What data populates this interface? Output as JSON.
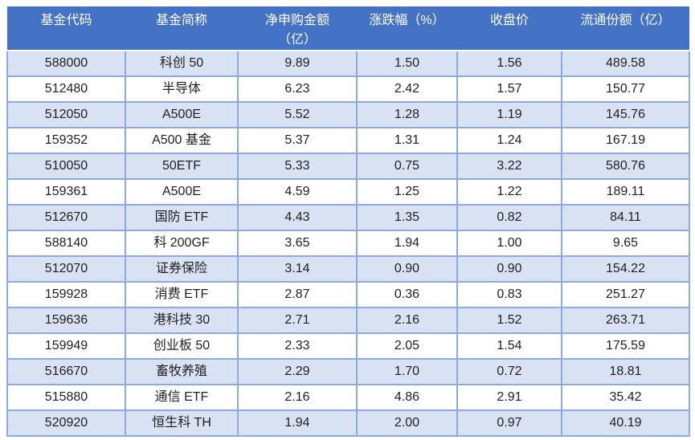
{
  "colors": {
    "header_bg": "#4472C4",
    "header_text": "#ffffff",
    "band_row_bg": "#D9E2F3",
    "plain_row_bg": "#ffffff",
    "border": "#8EAADB",
    "body_text": "#1f1f1f"
  },
  "table": {
    "columns": [
      {
        "key": "code",
        "label": "基金代码"
      },
      {
        "key": "name",
        "label": "基金简称"
      },
      {
        "key": "net",
        "label": "净申购金额\n（亿）"
      },
      {
        "key": "chg",
        "label": "涨跌幅（%）"
      },
      {
        "key": "close",
        "label": "收盘价"
      },
      {
        "key": "shares",
        "label": "流通份额（亿）"
      }
    ],
    "rows": [
      {
        "code": "588000",
        "name": "科创 50",
        "net": "9.89",
        "chg": "1.50",
        "close": "1.56",
        "shares": "489.58"
      },
      {
        "code": "512480",
        "name": "半导体",
        "net": "6.23",
        "chg": "2.42",
        "close": "1.57",
        "shares": "150.77"
      },
      {
        "code": "512050",
        "name": "A500E",
        "net": "5.52",
        "chg": "1.28",
        "close": "1.19",
        "shares": "145.76"
      },
      {
        "code": "159352",
        "name": "A500 基金",
        "net": "5.37",
        "chg": "1.31",
        "close": "1.24",
        "shares": "167.19"
      },
      {
        "code": "510050",
        "name": "50ETF",
        "net": "5.33",
        "chg": "0.75",
        "close": "3.22",
        "shares": "580.76"
      },
      {
        "code": "159361",
        "name": "A500E",
        "net": "4.59",
        "chg": "1.25",
        "close": "1.22",
        "shares": "189.11"
      },
      {
        "code": "512670",
        "name": "国防 ETF",
        "net": "4.43",
        "chg": "1.35",
        "close": "0.82",
        "shares": "84.11"
      },
      {
        "code": "588140",
        "name": "科 200GF",
        "net": "3.65",
        "chg": "1.94",
        "close": "1.00",
        "shares": "9.65"
      },
      {
        "code": "512070",
        "name": "证券保险",
        "net": "3.14",
        "chg": "0.90",
        "close": "0.90",
        "shares": "154.22"
      },
      {
        "code": "159928",
        "name": "消费 ETF",
        "net": "2.87",
        "chg": "0.36",
        "close": "0.83",
        "shares": "251.27"
      },
      {
        "code": "159636",
        "name": "港科技 30",
        "net": "2.71",
        "chg": "2.16",
        "close": "1.52",
        "shares": "263.71"
      },
      {
        "code": "159949",
        "name": "创业板 50",
        "net": "2.33",
        "chg": "2.05",
        "close": "1.54",
        "shares": "175.59"
      },
      {
        "code": "516670",
        "name": "畜牧养殖",
        "net": "2.29",
        "chg": "1.70",
        "close": "0.72",
        "shares": "18.81"
      },
      {
        "code": "515880",
        "name": "通信 ETF",
        "net": "2.16",
        "chg": "4.86",
        "close": "2.91",
        "shares": "35.42"
      },
      {
        "code": "520920",
        "name": "恒生科 TH",
        "net": "1.94",
        "chg": "2.00",
        "close": "0.97",
        "shares": "40.19"
      }
    ]
  }
}
